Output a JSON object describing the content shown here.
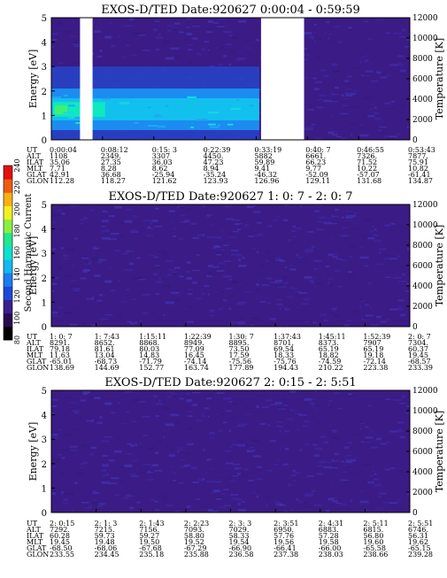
{
  "colors": {
    "background_purple": "#3b1b86",
    "colorbar": [
      "#000000",
      "#2a0a50",
      "#3a1f8e",
      "#2048d8",
      "#1c7cf0",
      "#12b8f0",
      "#10e0d0",
      "#20e890",
      "#8af040",
      "#f0f020",
      "#f8b010",
      "#f05a10",
      "#e01010"
    ]
  },
  "colorbar": {
    "label": "Second Harmonic Current",
    "ticks": [
      "80",
      "100",
      "120",
      "140",
      "160",
      "180",
      "200",
      "220",
      "240"
    ]
  },
  "eph_labels": [
    "UT",
    "ALT",
    "ILAT",
    "MLT",
    "GLAT",
    "GLON"
  ],
  "chart_data": [
    {
      "type": "heatmap",
      "title": "EXOS-D/TED   Date:920627  0:00:04 - 0:59:59",
      "ylabel": "Energy [eV]",
      "y2label": "Temperature [K]",
      "ylim": [
        0,
        5
      ],
      "y2lim": [
        0,
        12000
      ],
      "yticks": [
        "0",
        "1",
        "2",
        "3",
        "4",
        "5"
      ],
      "y2ticks": [
        "0",
        "2000",
        "4000",
        "6000",
        "8000",
        "10000",
        "12000"
      ],
      "gaps": [
        [
          0.08,
          0.115
        ],
        [
          0.585,
          0.705
        ]
      ],
      "features": {
        "band_center_eV": 1.2,
        "band_end_fraction": 0.58
      },
      "ephemeris": [
        [
          "0:00:04",
          "1108",
          "35.06",
          "7.71",
          "42.91",
          "112.28"
        ],
        [
          "0:08:12",
          "2349.",
          "27.35",
          "8.28",
          "36.68",
          "118.27"
        ],
        [
          "0:15: 3",
          "3307",
          "36.03",
          "8.62",
          "-25.94",
          "121.62"
        ],
        [
          "0:22:39",
          "4450.",
          "47.23",
          "8.94",
          "-35.24",
          "123.93"
        ],
        [
          "0:33:19",
          "5882",
          "59.89",
          "9.41",
          "-46.32",
          "126.96"
        ],
        [
          "0:40: 7",
          "6661.",
          "66.23",
          "9.77",
          "-52.09",
          "129.11"
        ],
        [
          "0:46:55",
          "7326.",
          "71.52",
          "10.22",
          "-57.07",
          "131.68"
        ],
        [
          "0:53:43",
          "7877.",
          "75.91",
          "10.82",
          "-61.41",
          "134.87"
        ]
      ]
    },
    {
      "type": "heatmap",
      "title": "EXOS-D/TED   Date:920627  1: 0: 7 - 2: 0: 7",
      "ylabel": "Energy [eV]",
      "y2label": "Temperature [K]",
      "ylim": [
        0,
        5
      ],
      "y2lim": [
        0,
        12000
      ],
      "yticks": [
        "0",
        "1",
        "2",
        "3",
        "4",
        "5"
      ],
      "y2ticks": [
        "0",
        "2000",
        "4000",
        "6000",
        "8000",
        "10000",
        "12000"
      ],
      "ephemeris": [
        [
          "1: 0: 7",
          "8291.",
          "79.18",
          "11.63",
          "-65.01",
          "138.69"
        ],
        [
          "1: 7:43",
          "8652.",
          "81.61",
          "13.04",
          "-68.73",
          "144.69"
        ],
        [
          "1:15:11",
          "8868.",
          "80.03",
          "14.83",
          "-71.79",
          "152.77"
        ],
        [
          "1:22:39",
          "8949.",
          "77.09",
          "16.45",
          "-74.14",
          "163.74"
        ],
        [
          "1:30: 7",
          "8895.",
          "73.50",
          "17.59",
          "-75.56",
          "177.89"
        ],
        [
          "1:37:43",
          "8701.",
          "69.54",
          "18.33",
          "-75.76",
          "194.43"
        ],
        [
          "1:45:11",
          "8373.",
          "65.19",
          "18.82",
          "-74.59",
          "210.22"
        ],
        [
          "1:52:39",
          "7907",
          "65.19",
          "19.18",
          "-72.14",
          "223.38"
        ],
        [
          "2: 0: 7",
          "7304.",
          "60.37",
          "19.45",
          "-68.57",
          "233.39"
        ]
      ]
    },
    {
      "type": "heatmap",
      "title": "EXOS-D/TED   Date:920627  2: 0:15 - 2: 5:51",
      "ylabel": "Energy [eV]",
      "y2label": "Temperature [K]",
      "ylim": [
        0,
        5
      ],
      "y2lim": [
        0,
        12000
      ],
      "yticks": [
        "0",
        "1",
        "2",
        "3",
        "4",
        "5"
      ],
      "y2ticks": [
        "0",
        "2000",
        "4000",
        "6000",
        "8000",
        "10000",
        "12000"
      ],
      "ephemeris": [
        [
          "2: 0:15",
          "7292.",
          "60.28",
          "19.45",
          "-68.50",
          "233.55"
        ],
        [
          "2: 1: 3",
          "7215.",
          "59.73",
          "19.48",
          "-68.06",
          "234.45"
        ],
        [
          "2: 1:43",
          "7156.",
          "59.27",
          "19.50",
          "-67.68",
          "235.18"
        ],
        [
          "2: 2:23",
          "7093.",
          "58.80",
          "19.52",
          "-67.29",
          "235.88"
        ],
        [
          "2: 3: 3",
          "7029.",
          "58.33",
          "19.54",
          "-66.90",
          "236.58"
        ],
        [
          "2: 3:51",
          "6950.",
          "57.76",
          "19.56",
          "-66.41",
          "237.38"
        ],
        [
          "2: 4:31",
          "6883.",
          "57.28",
          "19.58",
          "-66.00",
          "238.03"
        ],
        [
          "2: 5:11",
          "6815.",
          "56.80",
          "19.60",
          "-65.58",
          "238.66"
        ],
        [
          "2: 5:51",
          "6746.",
          "56.31",
          "19.62",
          "-65.15",
          "239.28"
        ]
      ]
    }
  ]
}
